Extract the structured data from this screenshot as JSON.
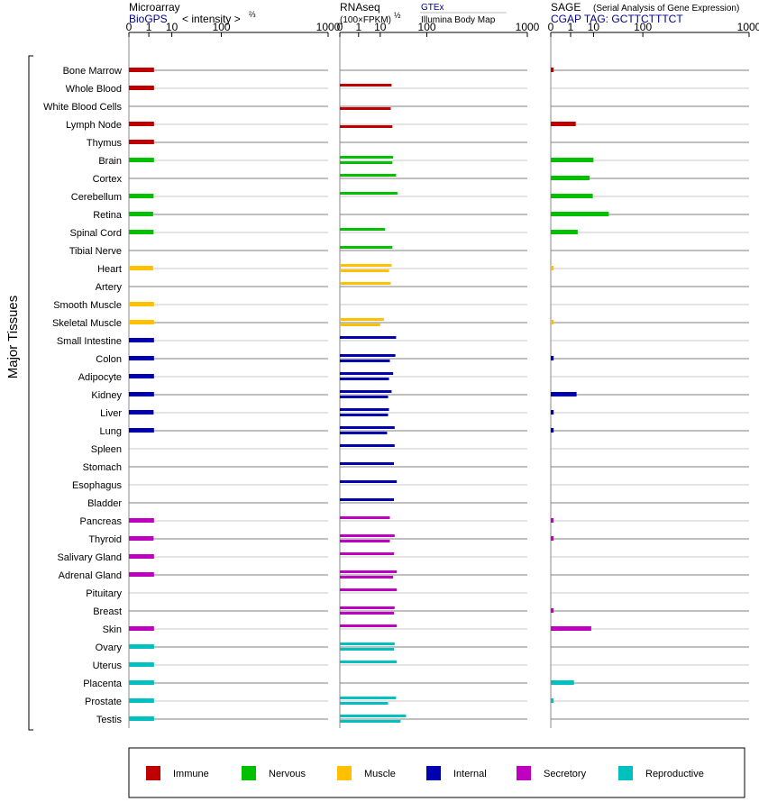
{
  "headers": {
    "microarray": {
      "title": "Microarray",
      "source": "BioGPS",
      "unit": "< intensity >",
      "unit_exp": "⅔"
    },
    "rnaseq": {
      "title": "RNAseq",
      "unit": "(100×FPKM)",
      "unit_exp": "½",
      "source_top": "GTEx",
      "source_bottom": "Illumina Body Map"
    },
    "sage": {
      "title": "SAGE",
      "subtitle": "(Serial Analysis of Gene Expression)",
      "tag": "CGAP TAG: GCTTCTTTCT"
    }
  },
  "y_axis_label": "Major Tissues",
  "colors": {
    "Immune": "#c00000",
    "Nervous": "#00c000",
    "Muscle": "#ffc000",
    "Internal": "#0000b0",
    "Secretory": "#c000c0",
    "Reproductive": "#00c0c0"
  },
  "legend": [
    "Immune",
    "Nervous",
    "Muscle",
    "Internal",
    "Secretory",
    "Reproductive"
  ],
  "chart_data": {
    "type": "bar",
    "orientation": "horizontal",
    "x_scale": "power",
    "x_ticks": [
      "0",
      "1",
      "10",
      "100",
      "1000"
    ],
    "tick_values": [
      0,
      1,
      10,
      100,
      1000
    ],
    "xlim": [
      0,
      1000
    ],
    "tissues": [
      {
        "name": "Bone Marrow",
        "system": "Immune",
        "microarray": 2.0,
        "gtex": null,
        "ibm": null,
        "sage": 0.003
      },
      {
        "name": "Whole Blood",
        "system": "Immune",
        "microarray": 2.0,
        "gtex": 21,
        "ibm": null,
        "sage": null
      },
      {
        "name": "White Blood Cells",
        "system": "Immune",
        "microarray": null,
        "gtex": null,
        "ibm": 20,
        "sage": null
      },
      {
        "name": "Lymph Node",
        "system": "Immune",
        "microarray": 2.0,
        "gtex": null,
        "ibm": 22,
        "sage": 2.0
      },
      {
        "name": "Thymus",
        "system": "Immune",
        "microarray": 2.0,
        "gtex": null,
        "ibm": null,
        "sage": null
      },
      {
        "name": "Brain",
        "system": "Nervous",
        "microarray": 2.0,
        "gtex": 23,
        "ibm": 22,
        "sage": 10
      },
      {
        "name": "Cortex",
        "system": "Nervous",
        "microarray": null,
        "gtex": 27,
        "ibm": null,
        "sage": 7.5
      },
      {
        "name": "Cerebellum",
        "system": "Nervous",
        "microarray": 1.9,
        "gtex": 29,
        "ibm": null,
        "sage": 9.5
      },
      {
        "name": "Retina",
        "system": "Nervous",
        "microarray": 1.8,
        "gtex": null,
        "ibm": null,
        "sage": 25
      },
      {
        "name": "Spinal Cord",
        "system": "Nervous",
        "microarray": 1.9,
        "gtex": 14,
        "ibm": null,
        "sage": 2.5
      },
      {
        "name": "Tibial Nerve",
        "system": "Nervous",
        "microarray": null,
        "gtex": 22,
        "ibm": null,
        "sage": null
      },
      {
        "name": "Heart",
        "system": "Muscle",
        "microarray": 1.8,
        "gtex": 21,
        "ibm": 18,
        "sage": 0.003
      },
      {
        "name": "Artery",
        "system": "Muscle",
        "microarray": null,
        "gtex": 20,
        "ibm": null,
        "sage": null
      },
      {
        "name": "Smooth Muscle",
        "system": "Muscle",
        "microarray": 2.0,
        "gtex": null,
        "ibm": null,
        "sage": null
      },
      {
        "name": "Skeletal Muscle",
        "system": "Muscle",
        "microarray": 2.0,
        "gtex": 13,
        "ibm": 10,
        "sage": 0.003
      },
      {
        "name": "Small Intestine",
        "system": "Internal",
        "microarray": 2.0,
        "gtex": 27,
        "ibm": null,
        "sage": null
      },
      {
        "name": "Colon",
        "system": "Internal",
        "microarray": 2.0,
        "gtex": 26,
        "ibm": 19,
        "sage": 0.003
      },
      {
        "name": "Adipocyte",
        "system": "Internal",
        "microarray": 2.0,
        "gtex": 23,
        "ibm": 18,
        "sage": null
      },
      {
        "name": "Kidney",
        "system": "Internal",
        "microarray": 2.0,
        "gtex": 21,
        "ibm": 17,
        "sage": 2.2
      },
      {
        "name": "Liver",
        "system": "Internal",
        "microarray": 1.9,
        "gtex": 18,
        "ibm": 17,
        "sage": 0.003
      },
      {
        "name": "Lung",
        "system": "Internal",
        "microarray": 2.0,
        "gtex": 25,
        "ibm": 16,
        "sage": 0.003
      },
      {
        "name": "Spleen",
        "system": "Internal",
        "microarray": null,
        "gtex": 25,
        "ibm": null,
        "sage": null
      },
      {
        "name": "Stomach",
        "system": "Internal",
        "microarray": null,
        "gtex": 24,
        "ibm": null,
        "sage": null
      },
      {
        "name": "Esophagus",
        "system": "Internal",
        "microarray": null,
        "gtex": 28,
        "ibm": null,
        "sage": null
      },
      {
        "name": "Bladder",
        "system": "Internal",
        "microarray": null,
        "gtex": 24,
        "ibm": null,
        "sage": null
      },
      {
        "name": "Pancreas",
        "system": "Secretory",
        "microarray": 2.0,
        "gtex": 19,
        "ibm": null,
        "sage": 0.003
      },
      {
        "name": "Thyroid",
        "system": "Secretory",
        "microarray": 1.9,
        "gtex": 25,
        "ibm": 19,
        "sage": 0.003
      },
      {
        "name": "Salivary Gland",
        "system": "Secretory",
        "microarray": 2.0,
        "gtex": 24,
        "ibm": null,
        "sage": null
      },
      {
        "name": "Adrenal Gland",
        "system": "Secretory",
        "microarray": 2.0,
        "gtex": 28,
        "ibm": 23,
        "sage": null
      },
      {
        "name": "Pituitary",
        "system": "Secretory",
        "microarray": null,
        "gtex": 28,
        "ibm": null,
        "sage": null
      },
      {
        "name": "Breast",
        "system": "Secretory",
        "microarray": null,
        "gtex": 25,
        "ibm": 24,
        "sage": 0.003
      },
      {
        "name": "Skin",
        "system": "Secretory",
        "microarray": 2.0,
        "gtex": 28,
        "ibm": null,
        "sage": 8.5
      },
      {
        "name": "Ovary",
        "system": "Reproductive",
        "microarray": 2.0,
        "gtex": 25,
        "ibm": 24,
        "sage": null
      },
      {
        "name": "Uterus",
        "system": "Reproductive",
        "microarray": 2.0,
        "gtex": 28,
        "ibm": null,
        "sage": null
      },
      {
        "name": "Placenta",
        "system": "Reproductive",
        "microarray": 2.0,
        "gtex": null,
        "ibm": null,
        "sage": 1.6
      },
      {
        "name": "Prostate",
        "system": "Reproductive",
        "microarray": 2.0,
        "gtex": 27,
        "ibm": 17,
        "sage": 0.003
      },
      {
        "name": "Testis",
        "system": "Reproductive",
        "microarray": 2.0,
        "gtex": 44,
        "ibm": 34,
        "sage": null
      }
    ]
  }
}
